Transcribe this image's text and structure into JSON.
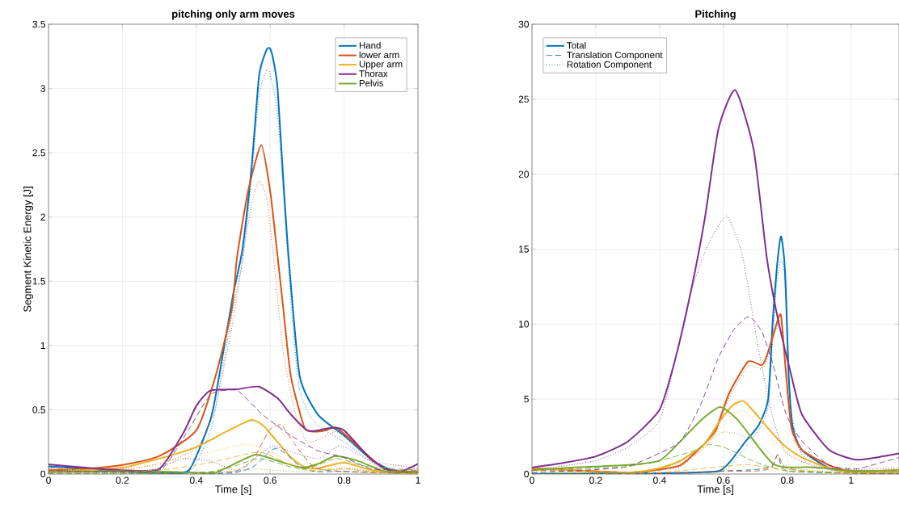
{
  "chart_data": [
    {
      "type": "line",
      "title": "pitching only arm moves",
      "xlabel": "Time [s]",
      "ylabel": "Segment Kinetic Energy [J]",
      "xlim": [
        0,
        1
      ],
      "ylim": [
        0,
        3.5
      ],
      "xticks": [
        0,
        0.2,
        0.4,
        0.6,
        0.8,
        1
      ],
      "yticks": [
        0,
        0.5,
        1,
        1.5,
        2,
        2.5,
        3,
        3.5
      ],
      "grid": true,
      "legend": "top right",
      "series": [
        {
          "name": "Hand",
          "color": "#0072bd",
          "line_style": "solid",
          "x": [
            0,
            0.1,
            0.2,
            0.3,
            0.38,
            0.44,
            0.47,
            0.5,
            0.525,
            0.55,
            0.57,
            0.59,
            0.6,
            0.61,
            0.62,
            0.635,
            0.65,
            0.68,
            0.73,
            0.8,
            0.875,
            0.93,
            1
          ],
          "values": [
            0.06,
            0.04,
            0.02,
            0.01,
            0.03,
            0.44,
            0.9,
            1.4,
            1.75,
            2.4,
            3.1,
            3.3,
            3.31,
            3.2,
            3.0,
            2.31,
            1.68,
            0.76,
            0.46,
            0.3,
            0.11,
            0.03,
            0.015
          ]
        },
        {
          "name": "lower arm",
          "color": "#d95319",
          "line_style": "solid",
          "x": [
            0,
            0.1,
            0.2,
            0.3,
            0.4,
            0.452,
            0.496,
            0.51,
            0.54,
            0.576,
            0.6,
            0.616,
            0.635,
            0.656,
            0.693,
            0.722,
            0.75,
            0.78,
            0.84,
            0.91,
            1
          ],
          "values": [
            0.03,
            0.04,
            0.07,
            0.14,
            0.34,
            0.76,
            1.28,
            1.68,
            2.2,
            2.56,
            2.2,
            1.8,
            1.3,
            0.76,
            0.36,
            0.33,
            0.34,
            0.36,
            0.21,
            0.04,
            0.015
          ]
        },
        {
          "name": "Upper arm",
          "color": "#edb120",
          "line_style": "solid",
          "x": [
            0,
            0.1,
            0.2,
            0.3,
            0.4,
            0.474,
            0.547,
            0.58,
            0.605,
            0.656,
            0.693,
            0.73,
            0.8,
            0.875,
            1
          ],
          "values": [
            0.015,
            0.03,
            0.05,
            0.12,
            0.21,
            0.32,
            0.42,
            0.38,
            0.3,
            0.13,
            0.055,
            0.045,
            0.09,
            0.03,
            0.0
          ]
        },
        {
          "name": "Thorax",
          "color": "#7e2f8e",
          "line_style": "solid",
          "x": [
            0,
            0.1,
            0.2,
            0.3,
            0.365,
            0.4,
            0.438,
            0.51,
            0.569,
            0.62,
            0.657,
            0.7,
            0.73,
            0.766,
            0.8,
            0.875,
            0.94,
            1
          ],
          "values": [
            0.075,
            0.05,
            0.03,
            0.04,
            0.32,
            0.53,
            0.65,
            0.66,
            0.68,
            0.59,
            0.46,
            0.34,
            0.34,
            0.36,
            0.34,
            0.11,
            0.01,
            0.08
          ]
        },
        {
          "name": "Pelvis",
          "color": "#77ac30",
          "line_style": "solid",
          "x": [
            0,
            0.2,
            0.3,
            0.4,
            0.45,
            0.49,
            0.56,
            0.635,
            0.686,
            0.73,
            0.777,
            0.84,
            0.91,
            1
          ],
          "values": [
            0.015,
            0.02,
            0.02,
            0.01,
            0.01,
            0.06,
            0.15,
            0.09,
            0.05,
            0.08,
            0.14,
            0.1,
            0.02,
            0.015
          ]
        },
        {
          "color": "#0072bd",
          "line_style": "dashed",
          "x": [
            0,
            0.4,
            0.5,
            0.55,
            0.58,
            0.6,
            0.62,
            0.65,
            0.68,
            0.72,
            0.8,
            0.9,
            1
          ],
          "values": [
            0.0,
            0.0,
            0.01,
            0.05,
            0.12,
            0.18,
            0.2,
            0.14,
            0.06,
            0.02,
            0.02,
            0.01,
            0.0
          ]
        },
        {
          "color": "#d95319",
          "line_style": "dashed",
          "x": [
            0,
            0.3,
            0.5,
            0.55,
            0.58,
            0.6,
            0.63,
            0.67,
            0.72,
            0.8,
            0.9,
            1
          ],
          "values": [
            0.0,
            0.01,
            0.02,
            0.1,
            0.25,
            0.35,
            0.38,
            0.22,
            0.05,
            0.02,
            0.01,
            0.015
          ]
        },
        {
          "color": "#edb120",
          "line_style": "dashed",
          "x": [
            0,
            0.2,
            0.33,
            0.44,
            0.57,
            0.656,
            0.7,
            0.8,
            0.9,
            1
          ],
          "values": [
            0.045,
            0.02,
            0.04,
            0.09,
            0.17,
            0.07,
            0.03,
            0.04,
            0.01,
            0.0
          ]
        },
        {
          "color": "#7e2f8e",
          "line_style": "dashed",
          "x": [
            0,
            0.2,
            0.306,
            0.38,
            0.44,
            0.51,
            0.58,
            0.656,
            0.73,
            0.8,
            0.875,
            1
          ],
          "values": [
            0.015,
            0.02,
            0.04,
            0.35,
            0.62,
            0.65,
            0.46,
            0.3,
            0.18,
            0.13,
            0.04,
            0.03
          ]
        },
        {
          "color": "#77ac30",
          "line_style": "dashed",
          "x": [
            0,
            0.4,
            0.49,
            0.57,
            0.65,
            0.7,
            0.78,
            0.86,
            1
          ],
          "values": [
            0.0,
            0.01,
            0.05,
            0.12,
            0.06,
            0.04,
            0.12,
            0.06,
            0.03
          ]
        },
        {
          "color": "#0072bd",
          "line_style": "dotted",
          "x": [
            0,
            0.2,
            0.38,
            0.44,
            0.47,
            0.5,
            0.525,
            0.55,
            0.57,
            0.595,
            0.62,
            0.64,
            0.66,
            0.68,
            0.72,
            0.8,
            0.9,
            1
          ],
          "values": [
            0.03,
            0.01,
            0.02,
            0.35,
            0.8,
            1.3,
            1.65,
            2.3,
            2.95,
            3.15,
            2.8,
            2.0,
            1.2,
            0.65,
            0.4,
            0.25,
            0.05,
            0.0
          ]
        },
        {
          "color": "#d95319",
          "line_style": "dotted",
          "x": [
            0,
            0.2,
            0.3,
            0.4,
            0.45,
            0.5,
            0.525,
            0.55,
            0.57,
            0.59,
            0.605,
            0.635,
            0.67,
            0.7,
            0.74,
            0.78,
            0.84,
            0.9,
            1
          ],
          "values": [
            0.045,
            0.04,
            0.08,
            0.2,
            0.5,
            1.2,
            1.68,
            2.1,
            2.28,
            2.15,
            1.8,
            0.96,
            0.45,
            0.25,
            0.28,
            0.33,
            0.2,
            0.04,
            0.015
          ]
        },
        {
          "color": "#edb120",
          "line_style": "dotted",
          "x": [
            0,
            0.2,
            0.33,
            0.45,
            0.51,
            0.547,
            0.62,
            0.7,
            0.8,
            0.9,
            1
          ],
          "values": [
            0.03,
            0.03,
            0.1,
            0.18,
            0.22,
            0.23,
            0.15,
            0.03,
            0.05,
            0.02,
            0.03
          ]
        },
        {
          "color": "#7e2f8e",
          "line_style": "dotted",
          "x": [
            0,
            0.2,
            0.29,
            0.365,
            0.44,
            0.51,
            0.58,
            0.61,
            0.66,
            0.73,
            0.79,
            0.875,
            1
          ],
          "values": [
            0.03,
            0.02,
            0.04,
            0.12,
            0.1,
            0.03,
            0.17,
            0.22,
            0.17,
            0.12,
            0.22,
            0.1,
            0.045
          ]
        },
        {
          "color": "#77ac30",
          "line_style": "dotted",
          "x": [
            0,
            0.4,
            0.5,
            0.56,
            0.65,
            0.72,
            0.8,
            0.9,
            1
          ],
          "values": [
            0.015,
            0.0,
            0.02,
            0.04,
            0.02,
            0.02,
            0.04,
            0.02,
            0.045
          ]
        }
      ]
    },
    {
      "type": "line",
      "title": "Pitching",
      "xlabel": "Time [s]",
      "xlim": [
        0,
        1.15
      ],
      "ylim": [
        0,
        30
      ],
      "xticks": [
        0,
        0.2,
        0.4,
        0.6,
        0.8,
        1
      ],
      "yticks": [
        0,
        5,
        10,
        15,
        20,
        25,
        30
      ],
      "grid": true,
      "legend": "top left",
      "series": [
        {
          "name": "Total",
          "color": "#0072bd",
          "line_style": "solid",
          "x": [
            0,
            0.2,
            0.4,
            0.5,
            0.586,
            0.62,
            0.67,
            0.71,
            0.74,
            0.754,
            0.767,
            0.78,
            0.79,
            0.796,
            0.804,
            0.817,
            0.846,
            0.93,
            1,
            1.15
          ],
          "values": [
            0.0,
            0.05,
            0.05,
            0.1,
            0.2,
            0.8,
            2.2,
            3.25,
            5.0,
            10.1,
            13.7,
            15.85,
            14.4,
            11.9,
            6.7,
            3.1,
            1.6,
            0.4,
            0.2,
            0.13
          ]
        },
        {
          "name": "Translation Component",
          "color": "#0072bd",
          "line_style": "dashed",
          "x": [
            0,
            0.4,
            0.5,
            0.6,
            0.7,
            0.75,
            0.77,
            0.78,
            0.8,
            0.9,
            1,
            1.15
          ],
          "values": [
            0.0,
            0.05,
            0.1,
            0.2,
            0.3,
            0.5,
            1.3,
            0.6,
            0.2,
            0.1,
            0.05,
            0.0
          ]
        },
        {
          "name": "Rotation Component",
          "color": "#0072bd",
          "line_style": "dotted",
          "x": [
            0,
            0.2,
            0.4,
            0.5,
            0.59,
            0.62,
            0.67,
            0.71,
            0.74,
            0.756,
            0.767,
            0.78,
            0.79,
            0.8,
            0.81,
            0.846,
            0.93,
            1,
            1.15
          ],
          "values": [
            0.13,
            0.03,
            0.03,
            0.05,
            0.15,
            0.5,
            1.8,
            2.9,
            4.5,
            9.5,
            12.8,
            14.3,
            13.5,
            9.5,
            4.5,
            1.3,
            0.3,
            0.15,
            0.0
          ]
        },
        {
          "color": "#d95319",
          "line_style": "solid",
          "x": [
            0,
            0.3,
            0.4,
            0.466,
            0.53,
            0.575,
            0.618,
            0.677,
            0.72,
            0.736,
            0.762,
            0.78,
            0.796,
            0.813,
            0.846,
            0.93,
            1,
            1.15
          ],
          "values": [
            0.39,
            0.1,
            0.3,
            0.6,
            1.8,
            2.9,
            5.4,
            7.5,
            7.25,
            7.9,
            9.7,
            10.6,
            6.7,
            3.1,
            1.6,
            0.6,
            0.2,
            0.26
          ]
        },
        {
          "color": "#edb120",
          "line_style": "solid",
          "x": [
            0,
            0.3,
            0.4,
            0.466,
            0.54,
            0.584,
            0.63,
            0.664,
            0.71,
            0.754,
            0.796,
            0.846,
            0.93,
            1,
            1.15
          ],
          "values": [
            0.39,
            0.1,
            0.4,
            0.9,
            2.0,
            3.4,
            4.6,
            4.85,
            3.8,
            2.7,
            1.8,
            1.1,
            0.4,
            0.15,
            0.13
          ]
        },
        {
          "color": "#7e2f8e",
          "line_style": "solid",
          "x": [
            0,
            0.1,
            0.2,
            0.3,
            0.4,
            0.45,
            0.5,
            0.542,
            0.584,
            0.637,
            0.695,
            0.736,
            0.77,
            0.81,
            0.846,
            0.93,
            1.015,
            1.1,
            1.15
          ],
          "values": [
            0.43,
            0.75,
            1.18,
            2.17,
            4.3,
            7.75,
            12.4,
            17.1,
            23.0,
            25.6,
            21.6,
            14.4,
            10.4,
            6.8,
            3.97,
            1.63,
            0.96,
            1.18,
            1.37
          ]
        },
        {
          "color": "#77ac30",
          "line_style": "solid",
          "x": [
            0,
            0.1,
            0.2,
            0.3,
            0.4,
            0.466,
            0.53,
            0.59,
            0.645,
            0.71,
            0.754,
            0.796,
            0.88,
            1.015,
            1.15
          ],
          "values": [
            0.26,
            0.4,
            0.5,
            0.6,
            0.9,
            2.2,
            3.6,
            4.47,
            3.6,
            1.8,
            0.7,
            0.45,
            0.45,
            0.2,
            0.26
          ]
        },
        {
          "color": "#d95319",
          "line_style": "dashed",
          "x": [
            0,
            0.4,
            0.5,
            0.6,
            0.7,
            0.75,
            0.77,
            0.79,
            0.85,
            1,
            1.15
          ],
          "values": [
            0.26,
            0.05,
            0.1,
            0.2,
            0.2,
            0.4,
            1.3,
            0.5,
            0.2,
            0.05,
            0.0
          ]
        },
        {
          "color": "#edb120",
          "line_style": "dashed",
          "x": [
            0,
            0.3,
            0.4,
            0.5,
            0.6,
            0.67,
            0.72,
            0.8,
            0.9,
            1,
            1.15
          ],
          "values": [
            0.13,
            0.05,
            0.1,
            0.3,
            0.5,
            0.64,
            0.5,
            0.3,
            0.15,
            0.05,
            0.26
          ]
        },
        {
          "color": "#7e2f8e",
          "line_style": "dashed",
          "x": [
            0,
            0.2,
            0.3,
            0.4,
            0.466,
            0.53,
            0.584,
            0.635,
            0.68,
            0.72,
            0.754,
            0.796,
            0.846,
            0.93,
            1.015,
            1.1,
            1.15
          ],
          "values": [
            0.1,
            0.3,
            0.5,
            1.4,
            2.2,
            4.7,
            7.75,
            9.7,
            10.5,
            9.5,
            7.4,
            4.0,
            2.2,
            0.6,
            0.35,
            0.8,
            1.1
          ]
        },
        {
          "color": "#77ac30",
          "line_style": "dashed",
          "x": [
            0,
            0.2,
            0.3,
            0.4,
            0.5,
            0.55,
            0.6,
            0.7,
            0.8,
            1,
            1.15
          ],
          "values": [
            0.26,
            0.4,
            0.5,
            0.9,
            1.5,
            1.95,
            1.8,
            0.8,
            0.2,
            0.1,
            0.13
          ]
        },
        {
          "color": "#d95319",
          "line_style": "dotted",
          "x": [
            0,
            0.3,
            0.4,
            0.466,
            0.53,
            0.575,
            0.618,
            0.677,
            0.72,
            0.736,
            0.762,
            0.78,
            0.796,
            0.813,
            0.846,
            0.93,
            1,
            1.15
          ],
          "values": [
            0.39,
            0.08,
            0.25,
            0.5,
            1.6,
            2.7,
            5.1,
            7.2,
            7.0,
            7.6,
            9.4,
            10.2,
            6.4,
            2.9,
            1.4,
            0.5,
            0.15,
            0.0
          ]
        },
        {
          "color": "#edb120",
          "line_style": "dotted",
          "x": [
            0,
            0.3,
            0.4,
            0.466,
            0.54,
            0.584,
            0.63,
            0.664,
            0.71,
            0.754,
            0.796,
            0.846,
            0.93,
            1,
            1.15
          ],
          "values": [
            0.13,
            0.08,
            0.3,
            0.75,
            1.7,
            3.0,
            4.0,
            4.2,
            3.3,
            2.3,
            1.5,
            0.9,
            0.3,
            0.1,
            0.13
          ]
        },
        {
          "color": "#7e2f8e",
          "line_style": "dotted",
          "x": [
            0,
            0.1,
            0.2,
            0.3,
            0.4,
            0.466,
            0.5,
            0.55,
            0.61,
            0.66,
            0.71,
            0.754,
            0.796,
            0.89,
            1,
            1.15
          ],
          "values": [
            0.3,
            0.55,
            0.9,
            1.8,
            3.6,
            9.2,
            12.3,
            15.2,
            17.2,
            14.5,
            8.3,
            3.8,
            1.4,
            0.5,
            0.3,
            0.39
          ]
        },
        {
          "color": "#77ac30",
          "line_style": "dotted",
          "x": [
            0,
            0.3,
            0.4,
            0.5,
            0.6,
            0.7,
            0.8,
            0.9,
            1,
            1.15
          ],
          "values": [
            0.0,
            0.1,
            0.3,
            1.3,
            2.8,
            2.2,
            0.5,
            0.2,
            0.1,
            0.26
          ]
        }
      ]
    }
  ]
}
